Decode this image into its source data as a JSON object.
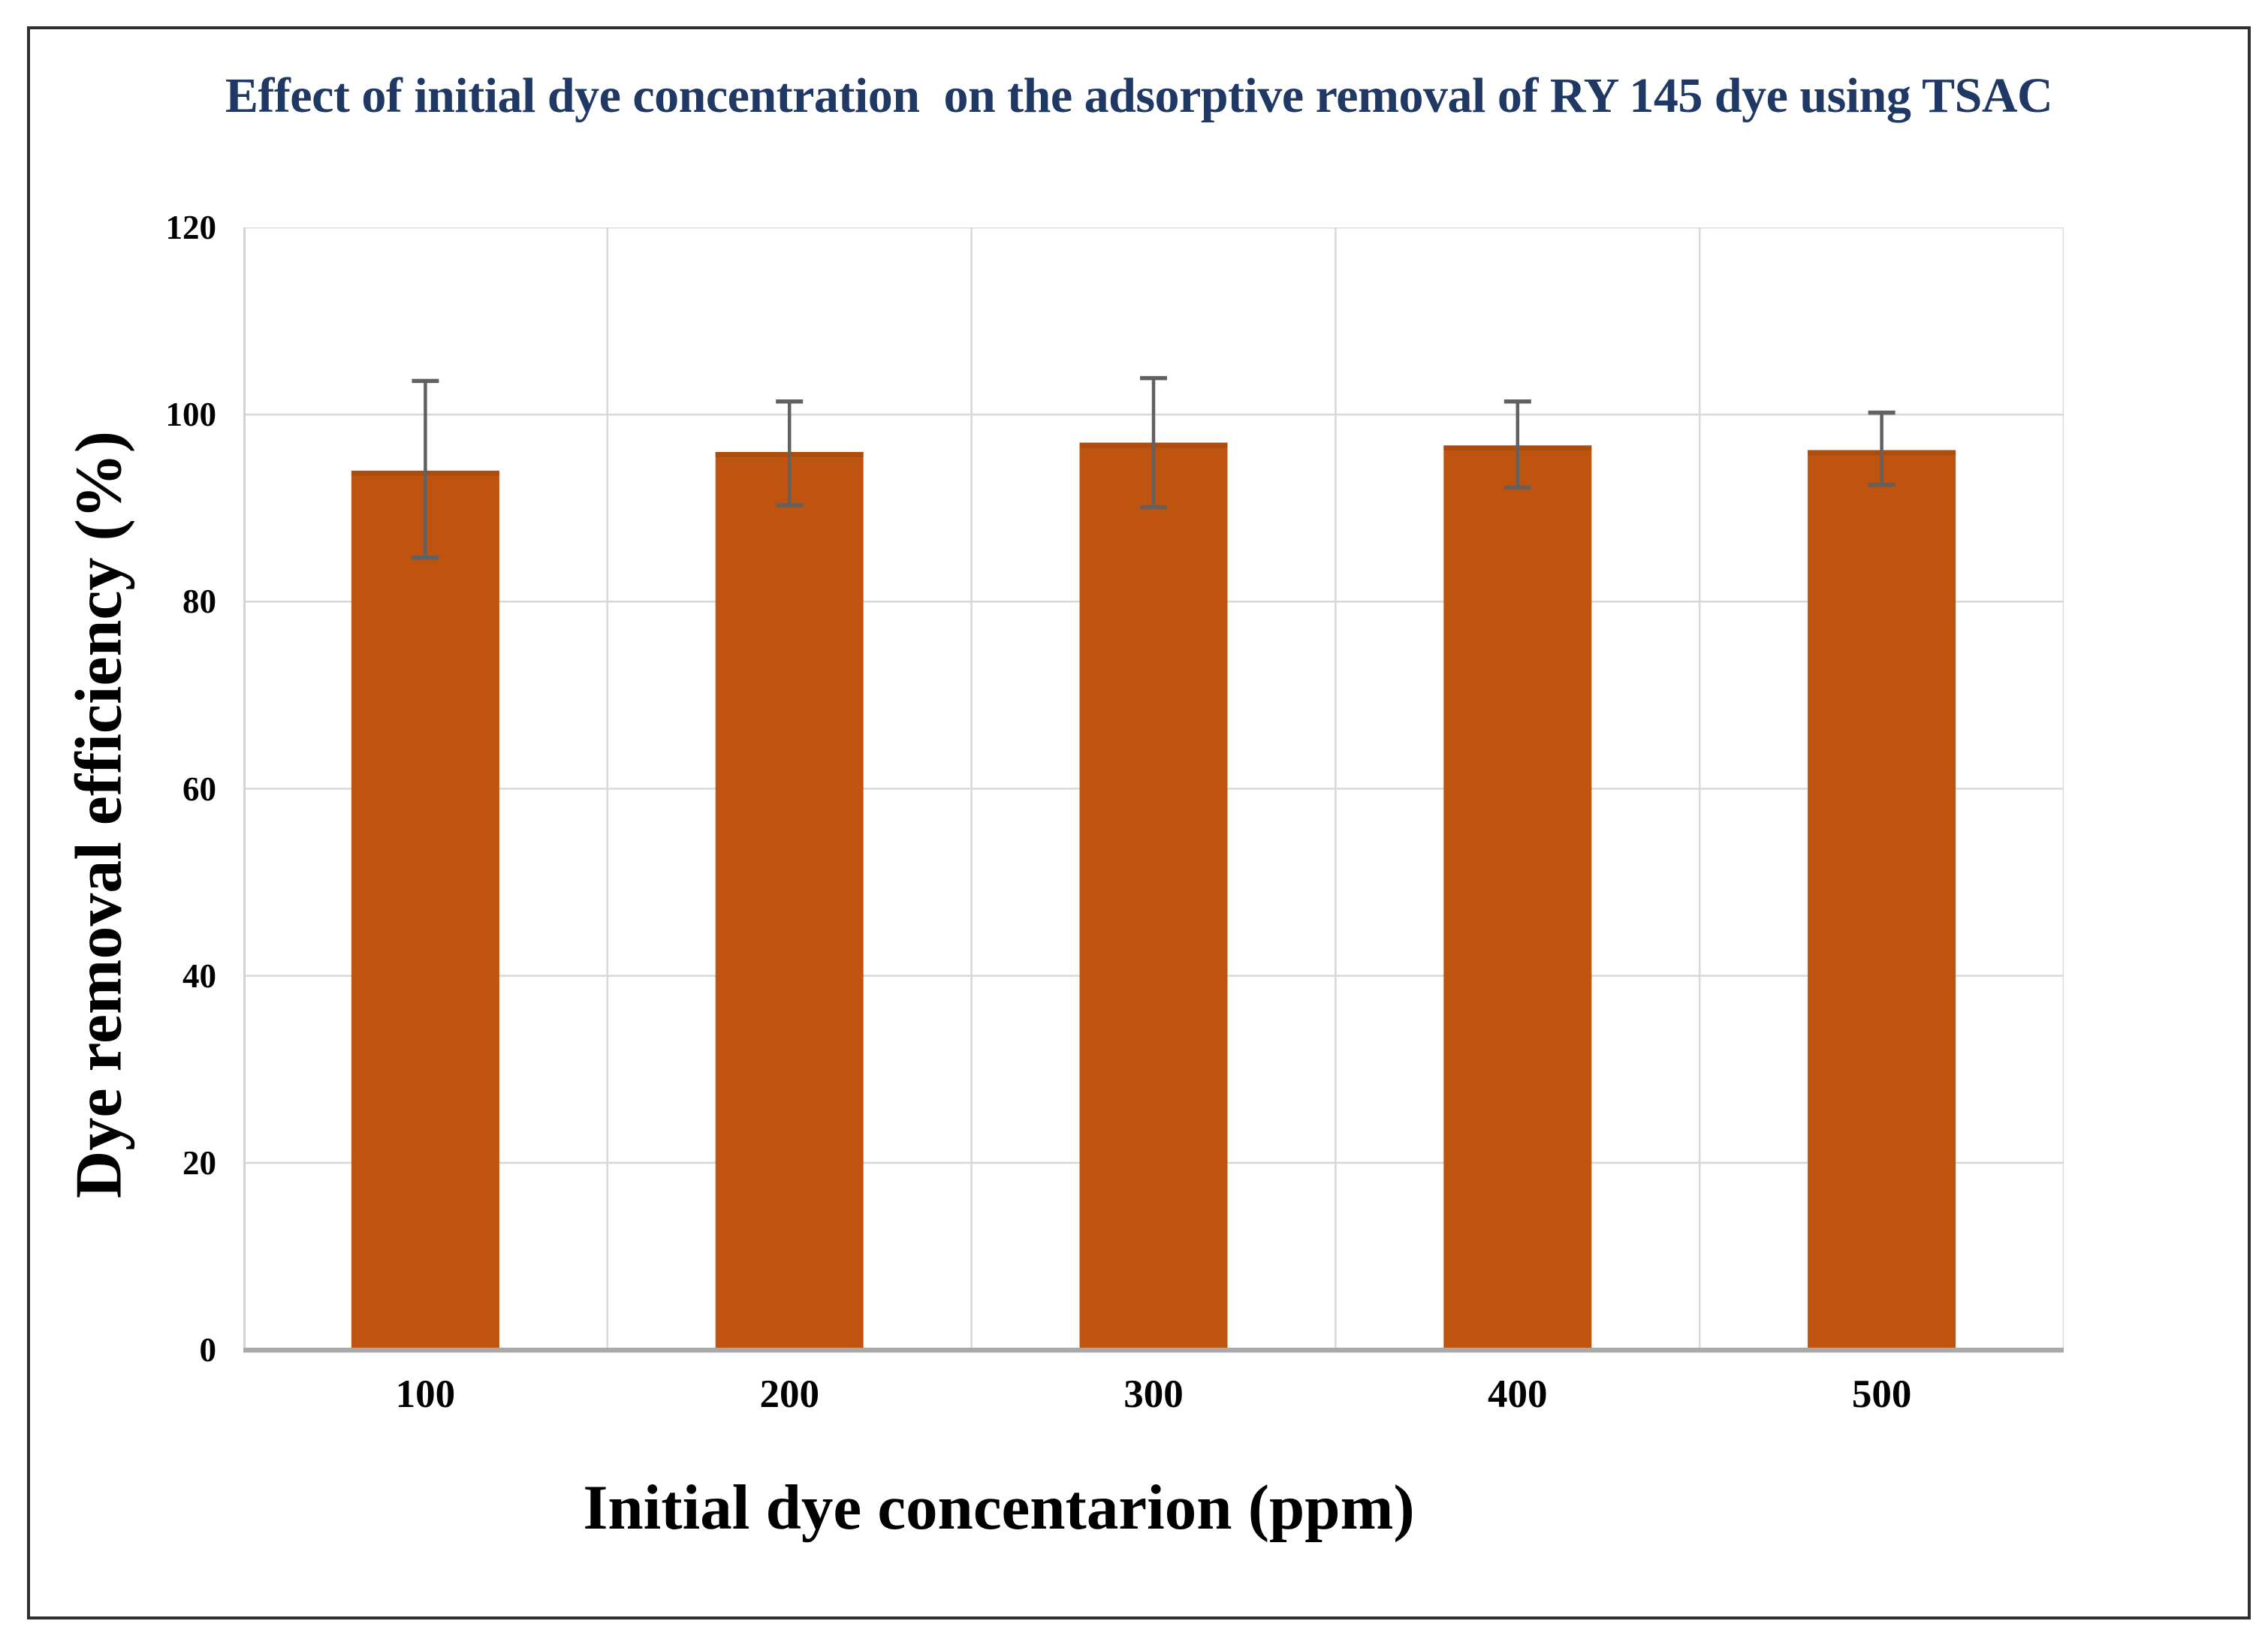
{
  "chart_data": {
    "type": "bar",
    "title": "Effect of initial dye concentration  on the adsorptive removal of RY 145 dye using TSAC",
    "xlabel": "Initial dye concentarion (ppm)",
    "ylabel": "Dye removal efficiency (%)",
    "categories": [
      "100",
      "200",
      "300",
      "400",
      "500"
    ],
    "series": [
      {
        "name": "Dye removal efficiency (%)",
        "values": [
          94,
          96,
          97,
          96.7,
          96.2
        ],
        "error_up": [
          9.6,
          5.4,
          6.9,
          4.7,
          4.0
        ],
        "error_down": [
          9.3,
          5.7,
          6.9,
          4.5,
          3.7
        ]
      }
    ],
    "ylim": [
      0,
      120
    ],
    "yticks": [
      0,
      20,
      40,
      60,
      80,
      100,
      120
    ],
    "grid": true,
    "legend": "none",
    "colors": {
      "bar": "#BE540F",
      "bar_top_edge": "#A04A0C",
      "error_bar": "#616161",
      "gridline": "#D9D9D9",
      "plot_edge": "#D3D3D3",
      "axis_line": "#A9A9A9",
      "title": "#1F3864",
      "text": "#000000",
      "border": "#303030"
    }
  }
}
